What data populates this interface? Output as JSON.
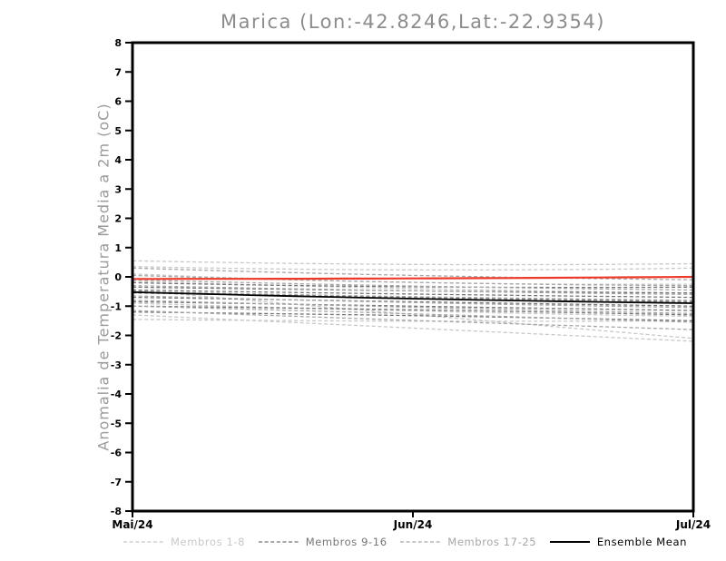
{
  "title": "Marica (Lon:-42.8246,Lat:-22.9354)",
  "chart_data": {
    "type": "line",
    "title": "Marica (Lon:-42.8246,Lat:-22.9354)",
    "xlabel": "",
    "ylabel": "Anomalia de Temperatura Media a 2m (oC)",
    "ylim": [
      -8,
      8
    ],
    "ytick_step": 1,
    "yticks": [
      8,
      7,
      6,
      5,
      4,
      3,
      2,
      1,
      0,
      -1,
      -2,
      -3,
      -4,
      -5,
      -6,
      -7,
      -8
    ],
    "xticks": [
      "Mai/24",
      "Jun/24",
      "Jul/24"
    ],
    "grid": false,
    "legend_position": "bottom",
    "background": "#ffffff",
    "frame_color": "#000000",
    "note": "Ensemble anomaly forecast; each member given as [start, mid, end] values in oC spanning Mai/24 to Jul/24",
    "series_groups": [
      {
        "name": "Membros 1-8",
        "color": "#c8c8c8",
        "style": "dashed",
        "line_width": 1.3,
        "members": [
          [
            0.55,
            0.35,
            0.45
          ],
          [
            0.35,
            0.15,
            0.3
          ],
          [
            0.1,
            -0.3,
            -0.25
          ],
          [
            -0.45,
            -1.3,
            -2.1
          ],
          [
            -0.9,
            -1.2,
            -1.35
          ],
          [
            -1.3,
            -1.75,
            -2.2
          ],
          [
            -1.45,
            -1.55,
            -1.5
          ],
          [
            -0.15,
            -0.45,
            -0.55
          ]
        ]
      },
      {
        "name": "Membros 9-16",
        "color": "#757575",
        "style": "dashed",
        "line_width": 1.3,
        "members": [
          [
            -0.2,
            -0.4,
            -0.35
          ],
          [
            -0.35,
            -0.5,
            -0.55
          ],
          [
            -0.45,
            -0.6,
            -0.7
          ],
          [
            -0.55,
            -0.7,
            -0.85
          ],
          [
            -0.7,
            -0.85,
            -1.0
          ],
          [
            -0.85,
            -1.0,
            -1.15
          ],
          [
            -1.0,
            -1.1,
            -1.3
          ],
          [
            -1.2,
            -1.3,
            -1.5
          ]
        ]
      },
      {
        "name": "Membros 17-25",
        "color": "#a6a6a6",
        "style": "dashed",
        "line_width": 1.3,
        "members": [
          [
            0.3,
            0.0,
            -0.1
          ],
          [
            0.05,
            -0.25,
            -0.3
          ],
          [
            -0.1,
            -0.35,
            -0.45
          ],
          [
            -0.3,
            -0.5,
            -0.6
          ],
          [
            -0.5,
            -0.7,
            -0.8
          ],
          [
            -0.65,
            -0.9,
            -1.05
          ],
          [
            -0.8,
            -1.05,
            -1.25
          ],
          [
            -1.0,
            -1.25,
            -1.55
          ],
          [
            -1.15,
            -1.5,
            -1.8
          ]
        ]
      },
      {
        "name": "Ensemble Mean",
        "color": "#000000",
        "style": "solid",
        "line_width": 1.8,
        "members": [
          [
            -0.52,
            -0.78,
            -0.9
          ]
        ]
      }
    ],
    "reference_line": {
      "name": "zero-anomaly-reference",
      "color": "#ee3a2a",
      "style": "solid",
      "line_width": 2.2,
      "values": [
        -0.07,
        -0.07,
        0.0
      ]
    }
  },
  "legend": {
    "items": [
      {
        "label": "Membros 1-8",
        "color": "#c8c8c8",
        "style": "dashed"
      },
      {
        "label": "Membros 9-16",
        "color": "#757575",
        "style": "dashed"
      },
      {
        "label": "Membros 17-25",
        "color": "#a6a6a6",
        "style": "dashed"
      },
      {
        "label": "Ensemble Mean",
        "color": "#000000",
        "style": "solid"
      }
    ]
  }
}
